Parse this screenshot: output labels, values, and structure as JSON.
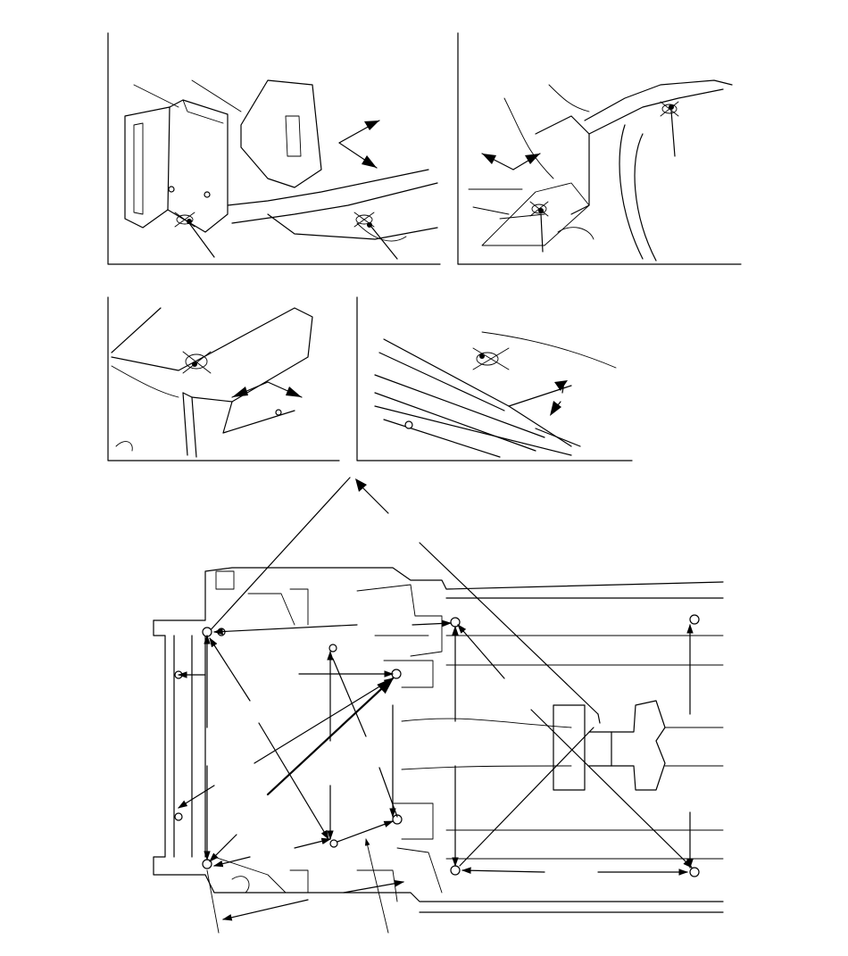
{
  "figure": {
    "description_visible_text": "",
    "panels": [
      {
        "id": "detail-top-left"
      },
      {
        "id": "detail-top-right"
      },
      {
        "id": "detail-middle-left"
      },
      {
        "id": "detail-middle-right"
      },
      {
        "id": "underbody-plan"
      }
    ],
    "colors": {
      "line": "#000000",
      "background": "#ffffff"
    }
  }
}
